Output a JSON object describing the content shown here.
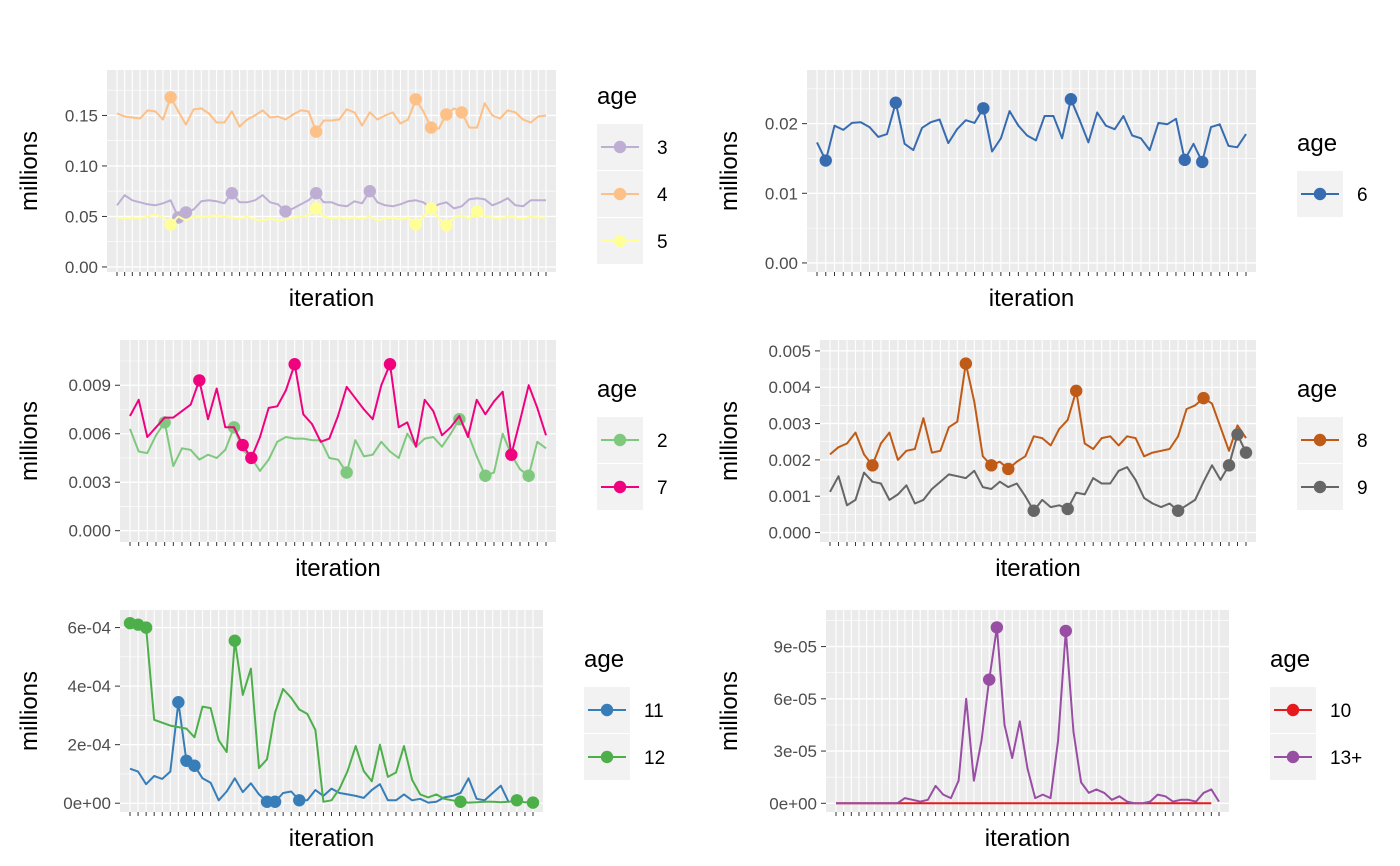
{
  "style": {
    "panel_bg": "#EBEBEB",
    "grid_major": "#FFFFFF",
    "axis_text": "#4D4D4D",
    "title_text": "#000000",
    "legend_key_bg": "#F2F2F2"
  },
  "chart_data": [
    {
      "type": "line",
      "xlabel": "iteration",
      "ylabel": "millions",
      "ylim": [
        -0.005,
        0.195
      ],
      "yticks": [
        0,
        0.05,
        0.1,
        0.15
      ],
      "ytick_labels": [
        "0.00",
        "0.05",
        "0.10",
        "0.15"
      ],
      "grid": true,
      "legend": {
        "title": "age",
        "position": "right",
        "entries": [
          "3",
          "4",
          "5"
        ]
      },
      "series": [
        {
          "name": "3",
          "color": "#BEAED4",
          "values": [
            0.061,
            0.071,
            0.066,
            0.064,
            0.062,
            0.061,
            0.063,
            0.066,
            0.049,
            0.054,
            0.057,
            0.065,
            0.066,
            0.065,
            0.063,
            0.073,
            0.064,
            0.064,
            0.066,
            0.071,
            0.064,
            0.062,
            0.055,
            0.058,
            0.062,
            0.066,
            0.073,
            0.064,
            0.064,
            0.061,
            0.06,
            0.065,
            0.063,
            0.075,
            0.064,
            0.061,
            0.06,
            0.062,
            0.065,
            0.066,
            0.064,
            0.058,
            0.062,
            0.064,
            0.058,
            0.06,
            0.067,
            0.068,
            0.067,
            0.061,
            0.064,
            0.068,
            0.061,
            0.06,
            0.066,
            0.066,
            0.066
          ],
          "highlight": [
            8,
            9,
            15,
            22,
            26,
            33
          ]
        },
        {
          "name": "4",
          "color": "#FDC086",
          "values": [
            0.152,
            0.149,
            0.148,
            0.147,
            0.155,
            0.154,
            0.146,
            0.168,
            0.154,
            0.141,
            0.156,
            0.157,
            0.152,
            0.143,
            0.143,
            0.154,
            0.139,
            0.146,
            0.15,
            0.155,
            0.148,
            0.149,
            0.146,
            0.151,
            0.155,
            0.154,
            0.134,
            0.145,
            0.145,
            0.146,
            0.156,
            0.153,
            0.14,
            0.153,
            0.146,
            0.15,
            0.153,
            0.142,
            0.146,
            0.166,
            0.154,
            0.138,
            0.137,
            0.151,
            0.157,
            0.153,
            0.138,
            0.138,
            0.162,
            0.15,
            0.147,
            0.155,
            0.153,
            0.146,
            0.143,
            0.149,
            0.15
          ],
          "highlight": [
            7,
            26,
            39,
            41,
            43,
            45
          ]
        },
        {
          "name": "5",
          "color": "#FFFF99",
          "values": [
            0.049,
            0.048,
            0.049,
            0.048,
            0.05,
            0.052,
            0.049,
            0.042,
            0.05,
            0.046,
            0.05,
            0.049,
            0.05,
            0.051,
            0.05,
            0.049,
            0.048,
            0.05,
            0.047,
            0.046,
            0.048,
            0.046,
            0.047,
            0.049,
            0.05,
            0.051,
            0.058,
            0.05,
            0.048,
            0.049,
            0.048,
            0.049,
            0.048,
            0.05,
            0.046,
            0.048,
            0.049,
            0.047,
            0.049,
            0.042,
            0.05,
            0.058,
            0.048,
            0.041,
            0.049,
            0.051,
            0.048,
            0.055,
            0.05,
            0.049,
            0.048,
            0.05,
            0.049,
            0.048,
            0.05,
            0.049,
            0.049
          ],
          "highlight": [
            7,
            26,
            39,
            41,
            43,
            47
          ]
        }
      ]
    },
    {
      "type": "line",
      "xlabel": "iteration",
      "ylabel": "millions",
      "ylim": [
        -0.0013,
        0.0277
      ],
      "yticks": [
        0,
        0.01,
        0.02
      ],
      "ytick_labels": [
        "0.00",
        "0.01",
        "0.02"
      ],
      "grid": true,
      "legend": {
        "title": "age",
        "position": "right",
        "entries": [
          "6"
        ]
      },
      "series": [
        {
          "name": "6",
          "color": "#386CB0",
          "values": [
            0.0173,
            0.0147,
            0.0197,
            0.0191,
            0.0201,
            0.0202,
            0.0195,
            0.0181,
            0.0185,
            0.023,
            0.0171,
            0.0162,
            0.0194,
            0.0202,
            0.0206,
            0.0172,
            0.0192,
            0.0205,
            0.0201,
            0.0222,
            0.016,
            0.0179,
            0.0218,
            0.0197,
            0.0183,
            0.0176,
            0.0211,
            0.0211,
            0.0179,
            0.0235,
            0.0205,
            0.0173,
            0.0216,
            0.0197,
            0.0192,
            0.0211,
            0.0183,
            0.0179,
            0.0162,
            0.0201,
            0.0199,
            0.0207,
            0.0148,
            0.0171,
            0.0145,
            0.0195,
            0.0199,
            0.0168,
            0.0166,
            0.0185
          ],
          "highlight": [
            1,
            9,
            19,
            29,
            42,
            44
          ]
        }
      ]
    },
    {
      "type": "line",
      "xlabel": "iteration",
      "ylabel": "millions",
      "ylim": [
        -0.0007,
        0.0118
      ],
      "yticks": [
        0,
        0.003,
        0.006,
        0.009
      ],
      "ytick_labels": [
        "0.000",
        "0.003",
        "0.006",
        "0.009"
      ],
      "grid": true,
      "legend": {
        "title": "age",
        "position": "right",
        "entries": [
          "2",
          "7"
        ]
      },
      "series": [
        {
          "name": "2",
          "color": "#7FC97F",
          "values": [
            0.0063,
            0.0049,
            0.0048,
            0.0059,
            0.0067,
            0.004,
            0.0051,
            0.005,
            0.0044,
            0.0047,
            0.0045,
            0.005,
            0.0064,
            0.005,
            0.0045,
            0.0037,
            0.0044,
            0.0055,
            0.0058,
            0.0057,
            0.0057,
            0.0056,
            0.0056,
            0.0045,
            0.0044,
            0.0036,
            0.0056,
            0.0046,
            0.0047,
            0.0055,
            0.0049,
            0.0045,
            0.006,
            0.0052,
            0.0057,
            0.0058,
            0.0052,
            0.006,
            0.0069,
            0.006,
            0.0046,
            0.0034,
            0.0036,
            0.006,
            0.0047,
            0.0038,
            0.0034,
            0.0055,
            0.0051
          ],
          "highlight": [
            4,
            12,
            25,
            38,
            41,
            46
          ]
        },
        {
          "name": "7",
          "color": "#F0027F",
          "values": [
            0.0071,
            0.0081,
            0.0058,
            0.0064,
            0.007,
            0.007,
            0.0074,
            0.0078,
            0.0093,
            0.0069,
            0.0088,
            0.0064,
            0.0064,
            0.0053,
            0.0045,
            0.0058,
            0.0076,
            0.0077,
            0.0087,
            0.0103,
            0.0072,
            0.0066,
            0.0055,
            0.0057,
            0.0071,
            0.0089,
            0.0082,
            0.0075,
            0.0069,
            0.009,
            0.0103,
            0.0064,
            0.0067,
            0.0052,
            0.0081,
            0.0074,
            0.0059,
            0.0064,
            0.0071,
            0.0058,
            0.0081,
            0.0072,
            0.008,
            0.0086,
            0.0047,
            0.0068,
            0.009,
            0.0076,
            0.0059
          ],
          "highlight": [
            8,
            13,
            14,
            19,
            30,
            44
          ]
        }
      ]
    },
    {
      "type": "line",
      "xlabel": "iteration",
      "ylabel": "millions",
      "ylim": [
        -0.00026,
        0.0053
      ],
      "yticks": [
        0,
        0.001,
        0.002,
        0.003,
        0.004,
        0.005
      ],
      "ytick_labels": [
        "0.000",
        "0.001",
        "0.002",
        "0.003",
        "0.004",
        "0.005"
      ],
      "grid": true,
      "legend": {
        "title": "age",
        "position": "right",
        "entries": [
          "8",
          "9"
        ]
      },
      "series": [
        {
          "name": "8",
          "color": "#BF5B17",
          "values": [
            0.00215,
            0.00235,
            0.00245,
            0.00275,
            0.00215,
            0.00185,
            0.00245,
            0.00275,
            0.002,
            0.00225,
            0.0023,
            0.00315,
            0.0022,
            0.00225,
            0.0029,
            0.00305,
            0.00465,
            0.0036,
            0.0021,
            0.00185,
            0.00195,
            0.00175,
            0.00195,
            0.0021,
            0.00265,
            0.0026,
            0.0024,
            0.00285,
            0.0031,
            0.0039,
            0.00245,
            0.0023,
            0.0026,
            0.00265,
            0.0024,
            0.00265,
            0.0026,
            0.0021,
            0.0022,
            0.00225,
            0.0023,
            0.00265,
            0.0034,
            0.0035,
            0.0037,
            0.00355,
            0.0029,
            0.00225,
            0.00295,
            0.0026
          ],
          "highlight": [
            5,
            16,
            19,
            21,
            29,
            44
          ]
        },
        {
          "name": "9",
          "color": "#666666",
          "values": [
            0.00112,
            0.00155,
            0.00075,
            0.0009,
            0.00165,
            0.0014,
            0.00135,
            0.0009,
            0.00105,
            0.0013,
            0.0008,
            0.0009,
            0.0012,
            0.0014,
            0.0016,
            0.00155,
            0.0015,
            0.0017,
            0.00125,
            0.0012,
            0.0014,
            0.00125,
            0.00135,
            0.001,
            0.0006,
            0.0009,
            0.0007,
            0.00075,
            0.00065,
            0.0011,
            0.00105,
            0.0015,
            0.00135,
            0.00135,
            0.0017,
            0.0018,
            0.00145,
            0.00095,
            0.0008,
            0.0007,
            0.0008,
            0.0006,
            0.00075,
            0.0009,
            0.0014,
            0.00185,
            0.00145,
            0.00185,
            0.0027,
            0.0022
          ],
          "highlight": [
            24,
            28,
            41,
            47,
            48,
            49
          ]
        }
      ]
    },
    {
      "type": "line",
      "xlabel": "iteration",
      "ylabel": "millions",
      "ylim": [
        -3e-05,
        0.00066
      ],
      "yticks": [
        0,
        0.0002,
        0.0004,
        0.0006
      ],
      "ytick_labels": [
        "0e+00",
        "2e-04",
        "4e-04",
        "6e-04"
      ],
      "grid": true,
      "legend": {
        "title": "age",
        "position": "right",
        "entries": [
          "11",
          "12"
        ]
      },
      "series": [
        {
          "name": "11",
          "color": "#377EB8",
          "values": [
            0.000118,
            0.000108,
            6.5e-05,
            9.3e-05,
            8.3e-05,
            0.000108,
            0.000345,
            0.000145,
            0.000128,
            8.5e-05,
            7e-05,
            1e-05,
            4e-05,
            8.5e-05,
            3.8e-05,
            6.8e-05,
            3e-05,
            5e-06,
            5e-06,
            3.5e-05,
            4e-05,
            1e-05,
            1e-05,
            4.5e-05,
            2.5e-05,
            5e-05,
            3.5e-05,
            3e-05,
            2.5e-05,
            1.8e-05,
            4.5e-05,
            6.5e-05,
            1e-05,
            1e-05,
            3e-05,
            1e-05,
            1.5e-05,
            2e-06,
            5e-06,
            2e-05,
            2.5e-05,
            3.5e-05,
            8.5e-05,
            1.5e-05,
            1e-05,
            3.5e-05,
            6e-05,
            3e-06
          ],
          "highlight": [
            6,
            7,
            8,
            17,
            18,
            21
          ]
        },
        {
          "name": "12",
          "color": "#4DAF4A",
          "values": [
            0.000615,
            0.00061,
            0.0006,
            0.000285,
            0.000275,
            0.000265,
            0.00026,
            0.000255,
            0.000225,
            0.00033,
            0.000325,
            0.000215,
            0.000175,
            0.000555,
            0.00037,
            0.00046,
            0.00012,
            0.00015,
            0.00031,
            0.00039,
            0.00036,
            0.00032,
            0.000305,
            0.00025,
            5e-06,
            1e-05,
            5e-05,
            0.00011,
            0.000195,
            0.00011,
            7.5e-05,
            0.0002,
            9e-05,
            0.000105,
            0.000195,
            8e-05,
            3e-05,
            2e-05,
            3e-05,
            1.5e-05,
            1e-05,
            5e-06,
            2e-06,
            3e-06,
            5e-06,
            5e-06,
            3e-06,
            5e-06,
            1e-05,
            3e-06,
            2e-06
          ],
          "highlight": [
            0,
            1,
            2,
            13,
            41,
            48,
            50
          ]
        }
      ]
    },
    {
      "type": "line",
      "xlabel": "iteration",
      "ylabel": "millions",
      "ylim": [
        -5e-06,
        0.000111
      ],
      "yticks": [
        0,
        3e-05,
        6e-05,
        9e-05
      ],
      "ytick_labels": [
        "0e+00",
        "3e-05",
        "6e-05",
        "9e-05"
      ],
      "grid": true,
      "legend": {
        "title": "age",
        "position": "right",
        "entries": [
          "10",
          "13+"
        ]
      },
      "series": [
        {
          "name": "10",
          "color": "#E41A1C",
          "values": [
            0,
            0,
            0,
            0,
            0,
            0,
            0,
            0,
            0,
            0,
            0,
            0,
            0,
            0,
            0,
            0,
            0,
            0,
            0,
            0,
            0,
            0,
            0,
            0,
            0,
            0,
            0,
            0,
            0,
            0,
            0,
            0,
            0,
            0,
            0,
            0,
            0,
            0,
            0,
            0,
            0,
            0,
            0,
            0,
            0,
            0,
            0,
            0,
            0,
            0
          ],
          "highlight": []
        },
        {
          "name": "13+",
          "color": "#984EA3",
          "values": [
            0,
            0,
            0,
            0,
            0,
            0,
            0,
            0,
            0,
            3e-06,
            2e-06,
            1e-06,
            2e-06,
            1e-05,
            5e-06,
            3e-06,
            1.3e-05,
            6e-05,
            1.3e-05,
            3.6e-05,
            7.1e-05,
            0.000101,
            4.5e-05,
            2.6e-05,
            4.7e-05,
            2e-05,
            3e-06,
            5e-06,
            3e-06,
            3.6e-05,
            9.9e-05,
            4.1e-05,
            1.2e-05,
            6e-06,
            8e-06,
            6e-06,
            2e-06,
            4e-06,
            1e-06,
            0.0,
            0.0,
            1e-06,
            5e-06,
            4e-06,
            1e-06,
            2e-06,
            2e-06,
            1e-06,
            6e-06,
            8e-06,
            1e-06
          ],
          "highlight": [
            20,
            21,
            30
          ]
        }
      ]
    }
  ]
}
